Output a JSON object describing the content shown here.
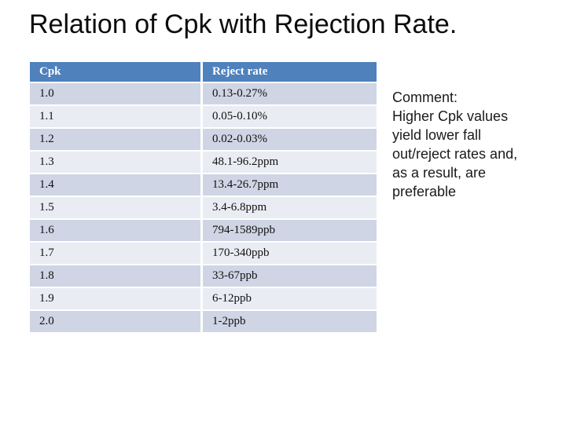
{
  "slide": {
    "title": "Relation of Cpk with Rejection Rate."
  },
  "table": {
    "columns": [
      "Cpk",
      "Reject rate"
    ],
    "rows": [
      [
        "1.0",
        "0.13-0.27%"
      ],
      [
        "1.1",
        "0.05-0.10%"
      ],
      [
        "1.2",
        "0.02-0.03%"
      ],
      [
        "1.3",
        "48.1-96.2ppm"
      ],
      [
        "1.4",
        "13.4-26.7ppm"
      ],
      [
        "1.5",
        "3.4-6.8ppm"
      ],
      [
        "1.6",
        "794-1589ppb"
      ],
      [
        "1.7",
        "170-340ppb"
      ],
      [
        "1.8",
        "33-67ppb"
      ],
      [
        "1.9",
        "6-12ppb"
      ],
      [
        "2.0",
        "1-2ppb"
      ]
    ]
  },
  "comment": {
    "lines": [
      "Comment:",
      "Higher Cpk values",
      "yield lower fall",
      "out/reject rates and,",
      "as a result, are",
      "preferable"
    ]
  },
  "colors": {
    "header_bg": "#4f81bd",
    "row_odd": "#cfd5e4",
    "row_even": "#e9ecf3",
    "header_text": "#ffffff",
    "body_text": "#111111"
  }
}
